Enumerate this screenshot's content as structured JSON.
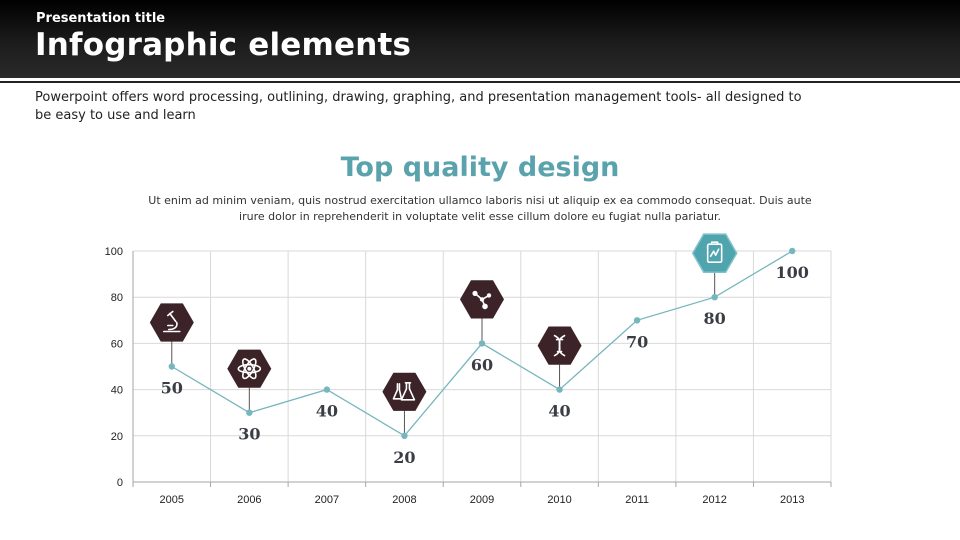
{
  "header": {
    "presentation_title": "Presentation title",
    "title": "Infographic elements"
  },
  "intro_text": "Powerpoint offers word processing, outlining, drawing, graphing, and presentation management tools- all designed to be easy to use and learn",
  "colors": {
    "accent": "#5aa3ad",
    "hex_dark": "#3b2328",
    "hex_highlight": "#4fa4ae",
    "line": "#76b6be"
  },
  "chart_data": {
    "type": "line",
    "title": "Top quality design",
    "subtitle": "Ut enim ad minim veniam, quis nostrud exercitation ullamco laboris nisi ut aliquip ex ea commodo  consequat. Duis aute irure dolor in reprehenderit in voluptate velit esse cillum dolore eu fugiat nulla pariatur.",
    "categories": [
      "2005",
      "2006",
      "2007",
      "2008",
      "2009",
      "2010",
      "2011",
      "2012",
      "2013"
    ],
    "values": [
      50,
      30,
      40,
      20,
      60,
      40,
      70,
      80,
      100
    ],
    "data_labels": [
      "50",
      "30",
      "40",
      "20",
      "60",
      "40",
      "70",
      "80",
      "100"
    ],
    "ylim": [
      0,
      100
    ],
    "yticks": [
      "0",
      "20",
      "40",
      "60",
      "80",
      "100"
    ],
    "grid": true,
    "legend": "none",
    "markers": [
      {
        "category": "2005",
        "icon": "microscope-icon"
      },
      {
        "category": "2006",
        "icon": "atom-icon"
      },
      {
        "category": "2008",
        "icon": "flasks-icon"
      },
      {
        "category": "2009",
        "icon": "molecule-icon"
      },
      {
        "category": "2010",
        "icon": "dna-icon"
      },
      {
        "category": "2012",
        "icon": "clipboard-chart-icon",
        "highlight": true
      }
    ]
  }
}
